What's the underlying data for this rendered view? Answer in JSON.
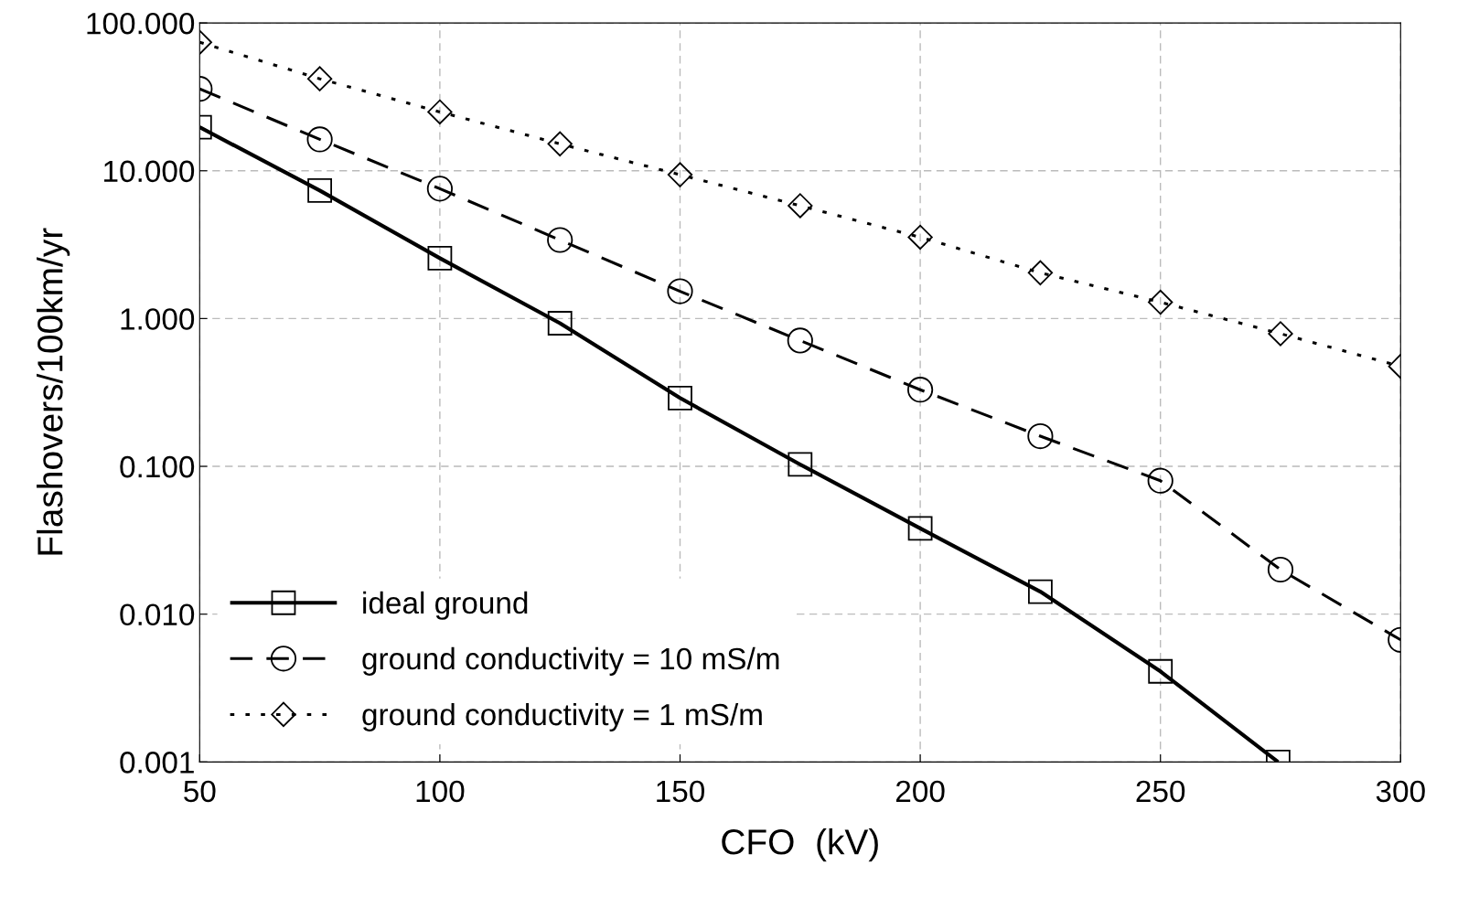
{
  "chart_data": {
    "type": "line",
    "xlabel": "CFO  (kV)",
    "ylabel": "Flashovers/100km/yr",
    "log": "y",
    "grid": true,
    "legend": "bottom left",
    "xlim": [
      50,
      300
    ],
    "xticks": [
      50,
      100,
      150,
      200,
      250,
      300
    ],
    "ylim": [
      0.001,
      100
    ],
    "yticks": [
      {
        "value": 0.001,
        "label": "0.001"
      },
      {
        "value": 0.01,
        "label": "0.010"
      },
      {
        "value": 0.1,
        "label": "0.100"
      },
      {
        "value": 1,
        "label": "1.000"
      },
      {
        "value": 10,
        "label": "10.000"
      },
      {
        "value": 100,
        "label": "100.000"
      }
    ],
    "series": [
      {
        "name": "ideal ground",
        "color": "#000000",
        "marker": "square",
        "line_style": "solid",
        "x": [
          50,
          75,
          100,
          125,
          150,
          175,
          200,
          225,
          250,
          274.5
        ],
        "values": [
          19.7,
          7.35,
          2.56,
          0.93,
          0.29,
          0.103,
          0.038,
          0.0142,
          0.0041,
          0.001
        ]
      },
      {
        "name": "ground conductivity = 10 mS/m",
        "color": "#000000",
        "marker": "circle",
        "line_style": "dashed",
        "x": [
          50,
          75,
          100,
          125,
          150,
          175,
          200,
          225,
          250,
          275,
          300
        ],
        "values": [
          35.8,
          16.3,
          7.56,
          3.4,
          1.53,
          0.71,
          0.33,
          0.16,
          0.08,
          0.02,
          0.0067
        ]
      },
      {
        "name": "ground conductivity = 1 mS/m",
        "color": "#000000",
        "marker": "diamond",
        "line_style": "dotted",
        "x": [
          50,
          75,
          100,
          125,
          150,
          175,
          200,
          225,
          250,
          275,
          300
        ],
        "values": [
          74,
          41.9,
          25,
          15.2,
          9.4,
          5.8,
          3.55,
          2.04,
          1.29,
          0.79,
          0.475
        ]
      }
    ]
  }
}
